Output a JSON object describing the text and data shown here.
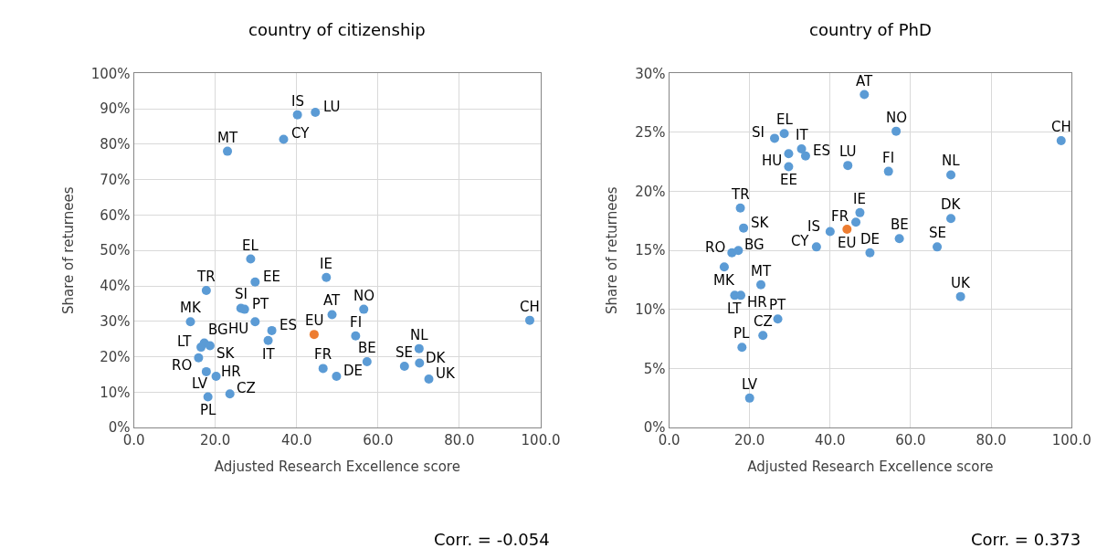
{
  "chart_data": [
    {
      "type": "scatter",
      "title": "country of citizenship",
      "xlabel": "Adjusted Research Excellence score",
      "ylabel": "Share of returnees",
      "xlim": [
        0,
        100
      ],
      "ylim": [
        0,
        100
      ],
      "xticks": [
        {
          "value": 0,
          "label": "0.0"
        },
        {
          "value": 20,
          "label": "20.0"
        },
        {
          "value": 40,
          "label": "40.0"
        },
        {
          "value": 60,
          "label": "60.0"
        },
        {
          "value": 80,
          "label": "80.0"
        },
        {
          "value": 100,
          "label": "100.0"
        }
      ],
      "yticks": [
        {
          "value": 0,
          "label": "0%"
        },
        {
          "value": 10,
          "label": "10%"
        },
        {
          "value": 20,
          "label": "20%"
        },
        {
          "value": 30,
          "label": "30%"
        },
        {
          "value": 40,
          "label": "40%"
        },
        {
          "value": 50,
          "label": "50%"
        },
        {
          "value": 60,
          "label": "60%"
        },
        {
          "value": 70,
          "label": "70%"
        },
        {
          "value": 80,
          "label": "80%"
        },
        {
          "value": 90,
          "label": "90%"
        },
        {
          "value": 100,
          "label": "100%"
        }
      ],
      "grid": true,
      "marker": "circle",
      "series": [
        {
          "color": "#5b9bd5",
          "x": [
            40.2,
            44.6,
            36.8,
            23.0,
            28.7,
            29.8,
            47.3,
            17.8,
            26.3,
            27.2,
            29.8,
            33.9,
            33.0,
            13.9,
            48.7,
            56.5,
            54.5,
            97.3,
            17.3,
            16.5,
            18.7,
            15.9,
            17.8,
            20.2,
            23.6,
            18.2,
            46.5,
            49.8,
            57.3,
            66.5,
            70.1,
            70.2,
            72.5
          ],
          "values": [
            88.3,
            89.0,
            81.4,
            78.0,
            47.6,
            41.1,
            42.4,
            38.7,
            33.7,
            33.4,
            29.9,
            27.4,
            24.6,
            29.9,
            31.9,
            33.4,
            25.9,
            30.3,
            23.9,
            22.7,
            23.1,
            19.7,
            15.8,
            14.5,
            9.5,
            8.7,
            16.7,
            14.5,
            18.6,
            17.3,
            22.3,
            18.2,
            13.7
          ]
        },
        {
          "color": "#ed7d31",
          "x": [
            44.3
          ],
          "values": [
            26.3
          ]
        }
      ],
      "annotations": [
        {
          "text": "IS",
          "x": 40.2,
          "y": 88.3
        },
        {
          "text": "LU",
          "x": 44.6,
          "y": 89.0
        },
        {
          "text": "CY",
          "x": 36.8,
          "y": 81.4
        },
        {
          "text": "MT",
          "x": 23.0,
          "y": 78.0
        },
        {
          "text": "EL",
          "x": 28.7,
          "y": 47.6
        },
        {
          "text": "EE",
          "x": 29.8,
          "y": 41.1
        },
        {
          "text": "IE",
          "x": 47.3,
          "y": 42.4
        },
        {
          "text": "TR",
          "x": 17.8,
          "y": 38.7
        },
        {
          "text": "SI",
          "x": 26.3,
          "y": 33.7
        },
        {
          "text": "PT",
          "x": 27.2,
          "y": 33.4
        },
        {
          "text": "HU",
          "x": 29.8,
          "y": 29.9
        },
        {
          "text": "ES",
          "x": 33.9,
          "y": 27.4
        },
        {
          "text": "IT",
          "x": 33.0,
          "y": 24.6
        },
        {
          "text": "MK",
          "x": 13.9,
          "y": 29.9
        },
        {
          "text": "AT",
          "x": 48.7,
          "y": 31.9
        },
        {
          "text": "NO",
          "x": 56.5,
          "y": 33.4
        },
        {
          "text": "FI",
          "x": 54.5,
          "y": 25.9
        },
        {
          "text": "CH",
          "x": 97.3,
          "y": 30.3
        },
        {
          "text": "BG",
          "x": 17.3,
          "y": 23.9
        },
        {
          "text": "LT",
          "x": 16.5,
          "y": 22.7
        },
        {
          "text": "SK",
          "x": 18.7,
          "y": 23.1
        },
        {
          "text": "RO",
          "x": 15.9,
          "y": 19.7
        },
        {
          "text": "HR",
          "x": 17.8,
          "y": 15.8
        },
        {
          "text": "LV",
          "x": 20.2,
          "y": 14.5
        },
        {
          "text": "CZ",
          "x": 23.6,
          "y": 9.5
        },
        {
          "text": "PL",
          "x": 18.2,
          "y": 8.7
        },
        {
          "text": "FR",
          "x": 46.5,
          "y": 16.7
        },
        {
          "text": "DE",
          "x": 49.8,
          "y": 14.5
        },
        {
          "text": "BE",
          "x": 57.3,
          "y": 18.6
        },
        {
          "text": "SE",
          "x": 66.5,
          "y": 17.3
        },
        {
          "text": "NL",
          "x": 70.1,
          "y": 22.3
        },
        {
          "text": "DK",
          "x": 70.2,
          "y": 18.2
        },
        {
          "text": "UK",
          "x": 72.5,
          "y": 13.7
        },
        {
          "text": "EU",
          "x": 44.3,
          "y": 26.3
        },
        "Corr. = -0.054"
      ]
    },
    {
      "type": "scatter",
      "title": "country of PhD",
      "xlabel": "Adjusted Research Excellence score",
      "ylabel": "Share of returnees",
      "xlim": [
        0,
        100
      ],
      "ylim": [
        0,
        30
      ],
      "xticks": [
        {
          "value": 0,
          "label": "0.0"
        },
        {
          "value": 20,
          "label": "20.0"
        },
        {
          "value": 40,
          "label": "40.0"
        },
        {
          "value": 60,
          "label": "60.0"
        },
        {
          "value": 80,
          "label": "80.0"
        },
        {
          "value": 100,
          "label": "100.0"
        }
      ],
      "yticks": [
        {
          "value": 0,
          "label": "0%"
        },
        {
          "value": 5,
          "label": "5%"
        },
        {
          "value": 10,
          "label": "10%"
        },
        {
          "value": 15,
          "label": "15%"
        },
        {
          "value": 20,
          "label": "20%"
        },
        {
          "value": 25,
          "label": "25%"
        },
        {
          "value": 30,
          "label": "30%"
        }
      ],
      "grid": true,
      "marker": "circle",
      "series": [
        {
          "color": "#5b9bd5",
          "x": [
            48.5,
            56.4,
            97.4,
            26.2,
            28.6,
            32.9,
            29.7,
            33.9,
            44.4,
            29.7,
            54.5,
            70.0,
            17.7,
            47.4,
            46.4,
            70.0,
            18.5,
            40.0,
            57.2,
            36.6,
            66.6,
            49.9,
            15.6,
            17.2,
            13.7,
            22.8,
            16.3,
            17.8,
            72.4,
            27.0,
            23.3,
            18.1,
            20.0
          ],
          "values": [
            28.2,
            25.1,
            24.3,
            24.5,
            24.9,
            23.6,
            23.2,
            23.0,
            22.2,
            22.1,
            21.7,
            21.4,
            18.6,
            18.2,
            17.4,
            17.7,
            16.9,
            16.6,
            16.0,
            15.3,
            15.3,
            14.8,
            14.8,
            15.0,
            13.6,
            12.1,
            11.2,
            11.2,
            11.1,
            9.2,
            7.8,
            6.8,
            2.5
          ]
        },
        {
          "color": "#ed7d31",
          "x": [
            44.2
          ],
          "values": [
            16.8
          ]
        }
      ],
      "annotations": [
        {
          "text": "AT",
          "x": 48.5,
          "y": 28.2
        },
        {
          "text": "NO",
          "x": 56.4,
          "y": 25.1
        },
        {
          "text": "CH",
          "x": 97.4,
          "y": 24.3
        },
        {
          "text": "SI",
          "x": 26.2,
          "y": 24.5
        },
        {
          "text": "EL",
          "x": 28.6,
          "y": 24.9
        },
        {
          "text": "IT",
          "x": 32.9,
          "y": 23.6
        },
        {
          "text": "HU",
          "x": 29.7,
          "y": 23.2
        },
        {
          "text": "ES",
          "x": 33.9,
          "y": 23.0
        },
        {
          "text": "LU",
          "x": 44.4,
          "y": 22.2
        },
        {
          "text": "EE",
          "x": 29.7,
          "y": 22.1
        },
        {
          "text": "FI",
          "x": 54.5,
          "y": 21.7
        },
        {
          "text": "NL",
          "x": 70.0,
          "y": 21.4
        },
        {
          "text": "TR",
          "x": 17.7,
          "y": 18.6
        },
        {
          "text": "IE",
          "x": 47.4,
          "y": 18.2
        },
        {
          "text": "FR",
          "x": 46.4,
          "y": 17.4
        },
        {
          "text": "DK",
          "x": 70.0,
          "y": 17.7
        },
        {
          "text": "SK",
          "x": 18.5,
          "y": 16.9
        },
        {
          "text": "IS",
          "x": 40.0,
          "y": 16.6
        },
        {
          "text": "BE",
          "x": 57.2,
          "y": 16.0
        },
        {
          "text": "CY",
          "x": 36.6,
          "y": 15.3
        },
        {
          "text": "SE",
          "x": 66.6,
          "y": 15.3
        },
        {
          "text": "DE",
          "x": 49.9,
          "y": 14.8
        },
        {
          "text": "RO",
          "x": 15.6,
          "y": 14.8
        },
        {
          "text": "BG",
          "x": 17.2,
          "y": 15.0
        },
        {
          "text": "MK",
          "x": 13.7,
          "y": 13.6
        },
        {
          "text": "MT",
          "x": 22.8,
          "y": 12.1
        },
        {
          "text": "LT",
          "x": 16.3,
          "y": 11.2
        },
        {
          "text": "HR",
          "x": 17.8,
          "y": 11.2
        },
        {
          "text": "UK",
          "x": 72.4,
          "y": 11.1
        },
        {
          "text": "PT",
          "x": 27.0,
          "y": 9.2
        },
        {
          "text": "CZ",
          "x": 23.3,
          "y": 7.8
        },
        {
          "text": "PL",
          "x": 18.1,
          "y": 6.8
        },
        {
          "text": "LV",
          "x": 20.0,
          "y": 2.5
        },
        {
          "text": "EU",
          "x": 44.2,
          "y": 16.8
        },
        "Corr. = 0.373"
      ]
    }
  ]
}
